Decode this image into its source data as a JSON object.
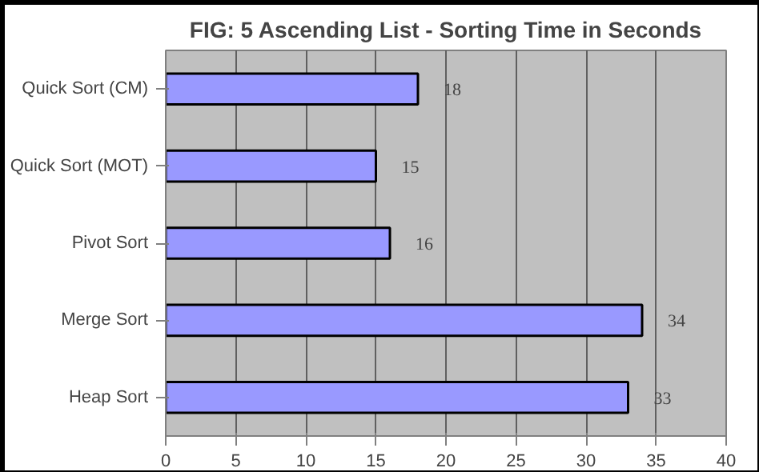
{
  "chart_data": {
    "type": "bar",
    "orientation": "horizontal",
    "title": "FIG: 5 Ascending List - Sorting Time in Seconds",
    "categories": [
      "Quick Sort (CM)",
      "Quick Sort (MOT)",
      "Pivot Sort",
      "Merge Sort",
      "Heap Sort"
    ],
    "values": [
      18,
      15,
      16,
      34,
      33
    ],
    "color": "#9999ff",
    "xlim": [
      0,
      40
    ],
    "xticks": [
      0,
      5,
      10,
      15,
      20,
      25,
      30,
      35,
      40
    ],
    "grid": "x",
    "data_labels": true
  }
}
